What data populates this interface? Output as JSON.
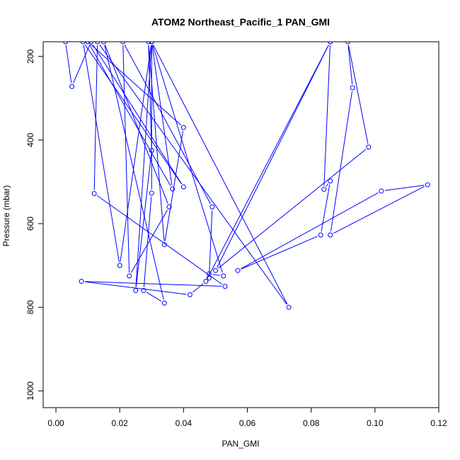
{
  "chart_data": {
    "type": "line",
    "title": "ATOM2 Northeast_Pacific_1 PAN_GMI",
    "xlabel": "PAN_GMI",
    "ylabel": "Pressure (mbar)",
    "xlim": [
      -0.004,
      0.12
    ],
    "ylim": [
      1040,
      165
    ],
    "y_reversed": true,
    "x_ticks": [
      0.0,
      0.02,
      0.04,
      0.06,
      0.08,
      0.1,
      0.12
    ],
    "x_tick_labels": [
      "0.00",
      "0.02",
      "0.04",
      "0.06",
      "0.08",
      "0.10",
      "0.12"
    ],
    "y_ticks": [
      200,
      400,
      600,
      800,
      1000
    ],
    "y_tick_labels": [
      "200",
      "400",
      "600",
      "800",
      "1000"
    ],
    "grid": false,
    "series_color": "#0000ff",
    "marker": "open-circle",
    "series": [
      {
        "name": "",
        "x": [
          0.003,
          0.005,
          0.011,
          0.04,
          0.0085,
          0.02,
          0.03,
          0.0365,
          0.01,
          0.04,
          0.034,
          0.029,
          0.03,
          0.025,
          0.03,
          0.03,
          0.0275,
          0.034,
          0.015,
          0.0355,
          0.023,
          0.021,
          0.049,
          0.048,
          0.048,
          0.0525,
          0.03,
          0.073,
          0.013,
          0.012,
          0.053,
          0.008,
          0.042,
          0.047,
          0.086,
          0.084,
          0.086,
          0.083,
          0.057,
          0.102,
          0.1165,
          0.086,
          0.093,
          0.0915,
          0.098,
          0.05,
          0.086
        ],
        "y": [
          165,
          272,
          165,
          512,
          165,
          700,
          165,
          517,
          165,
          370,
          650,
          165,
          425,
          760,
          165,
          527,
          760,
          790,
          165,
          560,
          725,
          165,
          560,
          730,
          720,
          725,
          165,
          800,
          165,
          528,
          750,
          738,
          770,
          738,
          165,
          518,
          498,
          627,
          712,
          522,
          507,
          627,
          275,
          165,
          417,
          712,
          165
        ]
      }
    ]
  }
}
